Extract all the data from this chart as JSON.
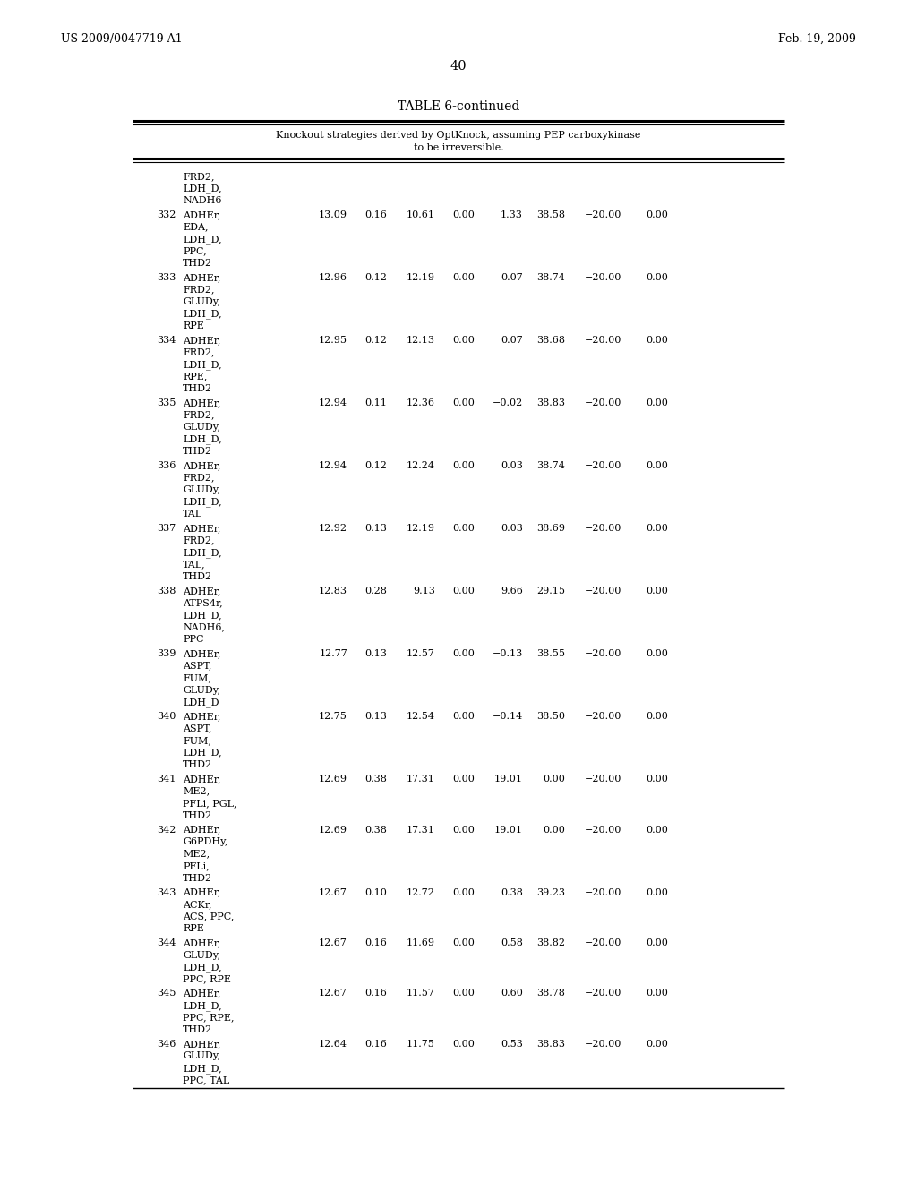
{
  "page_header_left": "US 2009/0047719 A1",
  "page_header_right": "Feb. 19, 2009",
  "page_number": "40",
  "table_title": "TABLE 6-continued",
  "table_subtitle_line1": "Knockout strategies derived by OptKnock, assuming PEP carboxykinase",
  "table_subtitle_line2": "to be irreversible.",
  "rows": [
    {
      "num": "",
      "knockouts": [
        "FRD2,",
        "LDH_D,",
        "NADH6"
      ],
      "vals": []
    },
    {
      "num": "332",
      "knockouts": [
        "ADHEr,",
        "EDA,",
        "LDH_D,",
        "PPC,",
        "THD2"
      ],
      "vals": [
        "13.09",
        "0.16",
        "10.61",
        "0.00",
        "1.33",
        "38.58",
        "−20.00",
        "0.00"
      ]
    },
    {
      "num": "333",
      "knockouts": [
        "ADHEr,",
        "FRD2,",
        "GLUDy,",
        "LDH_D,",
        "RPE"
      ],
      "vals": [
        "12.96",
        "0.12",
        "12.19",
        "0.00",
        "0.07",
        "38.74",
        "−20.00",
        "0.00"
      ]
    },
    {
      "num": "334",
      "knockouts": [
        "ADHEr,",
        "FRD2,",
        "LDH_D,",
        "RPE,",
        "THD2"
      ],
      "vals": [
        "12.95",
        "0.12",
        "12.13",
        "0.00",
        "0.07",
        "38.68",
        "−20.00",
        "0.00"
      ]
    },
    {
      "num": "335",
      "knockouts": [
        "ADHEr,",
        "FRD2,",
        "GLUDy,",
        "LDH_D,",
        "THD2"
      ],
      "vals": [
        "12.94",
        "0.11",
        "12.36",
        "0.00",
        "−0.02",
        "38.83",
        "−20.00",
        "0.00"
      ]
    },
    {
      "num": "336",
      "knockouts": [
        "ADHEr,",
        "FRD2,",
        "GLUDy,",
        "LDH_D,",
        "TAL"
      ],
      "vals": [
        "12.94",
        "0.12",
        "12.24",
        "0.00",
        "0.03",
        "38.74",
        "−20.00",
        "0.00"
      ]
    },
    {
      "num": "337",
      "knockouts": [
        "ADHEr,",
        "FRD2,",
        "LDH_D,",
        "TAL,",
        "THD2"
      ],
      "vals": [
        "12.92",
        "0.13",
        "12.19",
        "0.00",
        "0.03",
        "38.69",
        "−20.00",
        "0.00"
      ]
    },
    {
      "num": "338",
      "knockouts": [
        "ADHEr,",
        "ATPS4r,",
        "LDH_D,",
        "NADH6,",
        "PPC"
      ],
      "vals": [
        "12.83",
        "0.28",
        "9.13",
        "0.00",
        "9.66",
        "29.15",
        "−20.00",
        "0.00"
      ]
    },
    {
      "num": "339",
      "knockouts": [
        "ADHEr,",
        "ASPT,",
        "FUM,",
        "GLUDy,",
        "LDH_D"
      ],
      "vals": [
        "12.77",
        "0.13",
        "12.57",
        "0.00",
        "−0.13",
        "38.55",
        "−20.00",
        "0.00"
      ]
    },
    {
      "num": "340",
      "knockouts": [
        "ADHEr,",
        "ASPT,",
        "FUM,",
        "LDH_D,",
        "THD2"
      ],
      "vals": [
        "12.75",
        "0.13",
        "12.54",
        "0.00",
        "−0.14",
        "38.50",
        "−20.00",
        "0.00"
      ]
    },
    {
      "num": "341",
      "knockouts": [
        "ADHEr,",
        "ME2,",
        "PFLi, PGL,",
        "THD2"
      ],
      "vals": [
        "12.69",
        "0.38",
        "17.31",
        "0.00",
        "19.01",
        "0.00",
        "−20.00",
        "0.00"
      ]
    },
    {
      "num": "342",
      "knockouts": [
        "ADHEr,",
        "G6PDHy,",
        "ME2,",
        "PFLi,",
        "THD2"
      ],
      "vals": [
        "12.69",
        "0.38",
        "17.31",
        "0.00",
        "19.01",
        "0.00",
        "−20.00",
        "0.00"
      ]
    },
    {
      "num": "343",
      "knockouts": [
        "ADHEr,",
        "ACKr,",
        "ACS, PPC,",
        "RPE"
      ],
      "vals": [
        "12.67",
        "0.10",
        "12.72",
        "0.00",
        "0.38",
        "39.23",
        "−20.00",
        "0.00"
      ]
    },
    {
      "num": "344",
      "knockouts": [
        "ADHEr,",
        "GLUDy,",
        "LDH_D,",
        "PPC, RPE"
      ],
      "vals": [
        "12.67",
        "0.16",
        "11.69",
        "0.00",
        "0.58",
        "38.82",
        "−20.00",
        "0.00"
      ]
    },
    {
      "num": "345",
      "knockouts": [
        "ADHEr,",
        "LDH_D,",
        "PPC, RPE,",
        "THD2"
      ],
      "vals": [
        "12.67",
        "0.16",
        "11.57",
        "0.00",
        "0.60",
        "38.78",
        "−20.00",
        "0.00"
      ]
    },
    {
      "num": "346",
      "knockouts": [
        "ADHEr,",
        "GLUDy,",
        "LDH_D,",
        "PPC, TAL"
      ],
      "vals": [
        "12.64",
        "0.16",
        "11.75",
        "0.00",
        "0.53",
        "38.83",
        "−20.00",
        "0.00"
      ]
    }
  ],
  "bg_color": "#ffffff",
  "text_color": "#000000"
}
